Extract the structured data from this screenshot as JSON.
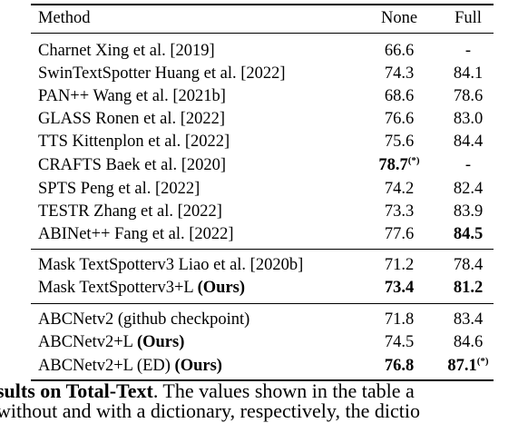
{
  "table": {
    "headers": {
      "method": "Method",
      "none": "None",
      "full": "Full"
    },
    "group1": [
      {
        "method": "Charnet Xing et al. [2019]",
        "none": "66.6",
        "full": "-"
      },
      {
        "method": "SwinTextSpotter Huang et al. [2022]",
        "none": "74.3",
        "full": "84.1"
      },
      {
        "method": "PAN++ Wang et al. [2021b]",
        "none": "68.6",
        "full": "78.6"
      },
      {
        "method": "GLASS Ronen et al. [2022]",
        "none": "76.6",
        "full": "83.0"
      },
      {
        "method": "TTS Kittenplon et al. [2022]",
        "none": "75.6",
        "full": "84.4"
      },
      {
        "method": "CRAFTS Baek et al. [2020]",
        "none": "78.7",
        "none_sup": "(*)",
        "full": "-"
      },
      {
        "method": "SPTS Peng et al. [2022]",
        "none": "74.2",
        "full": "82.4"
      },
      {
        "method": "TESTR Zhang et al. [2022]",
        "none": "73.3",
        "full": "83.9"
      },
      {
        "method": "ABINet++ Fang et al. [2022]",
        "none": "77.6",
        "full": "84.5"
      }
    ],
    "group2": [
      {
        "method": "Mask TextSpotterv3 Liao et al. [2020b]",
        "none": "71.2",
        "full": "78.4"
      },
      {
        "method": "Mask TextSpotterv3+L",
        "ours": "(Ours)",
        "none": "73.4",
        "full": "81.2"
      }
    ],
    "group3": [
      {
        "method": "ABCNetv2 (github checkpoint)",
        "none": "71.8",
        "full": "83.4"
      },
      {
        "method": "ABCNetv2+L",
        "ours": "(Ours)",
        "none": "74.5",
        "full": "84.6"
      },
      {
        "method": "ABCNetv2+L (ED)",
        "ours": "(Ours)",
        "none": "76.8",
        "full": "87.1",
        "full_sup": "(*)"
      }
    ]
  },
  "caption": {
    "bold_part": "sults on Total-Text",
    "rest": ". The values shown in the table a",
    "line2": "without and with a dictionary, respectively, the dictio"
  }
}
